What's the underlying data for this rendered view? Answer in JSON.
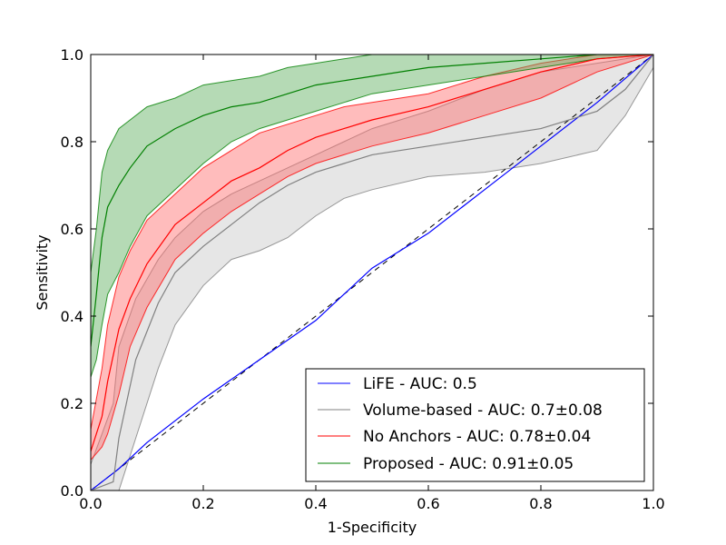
{
  "chart_data": {
    "type": "line",
    "title": "",
    "xlabel": "1-Specificity",
    "ylabel": "Sensitivity",
    "xlim": [
      0.0,
      1.0
    ],
    "ylim": [
      0.0,
      1.0
    ],
    "xticks": [
      "0.0",
      "0.2",
      "0.4",
      "0.6",
      "0.8",
      "1.0"
    ],
    "yticks": [
      "0.0",
      "0.2",
      "0.4",
      "0.6",
      "0.8",
      "1.0"
    ],
    "grid": false,
    "legend_position": "bottom-right",
    "chance_line": {
      "name": "chance",
      "style": "dashed",
      "color": "#000000",
      "x": [
        0,
        1
      ],
      "y": [
        0,
        1
      ]
    },
    "series": [
      {
        "name": "LiFE",
        "legend": "LiFE - AUC: 0.5",
        "color": "#0000ff",
        "x": [
          0.0,
          0.05,
          0.1,
          0.2,
          0.3,
          0.4,
          0.5,
          0.55,
          0.6,
          0.7,
          0.8,
          0.9,
          1.0
        ],
        "y": [
          0.0,
          0.05,
          0.11,
          0.21,
          0.3,
          0.39,
          0.51,
          0.55,
          0.59,
          0.69,
          0.79,
          0.89,
          1.0
        ]
      },
      {
        "name": "Volume-based",
        "legend": "Volume-based - AUC: 0.7±0.08",
        "color": "#808080",
        "fill": "#c8c8c8",
        "x": [
          0.0,
          0.04,
          0.05,
          0.08,
          0.12,
          0.15,
          0.2,
          0.25,
          0.3,
          0.35,
          0.4,
          0.45,
          0.5,
          0.6,
          0.7,
          0.8,
          0.9,
          0.95,
          1.0
        ],
        "y": [
          0.0,
          0.02,
          0.12,
          0.3,
          0.43,
          0.5,
          0.56,
          0.61,
          0.66,
          0.7,
          0.73,
          0.75,
          0.77,
          0.79,
          0.81,
          0.83,
          0.87,
          0.92,
          1.0
        ],
        "upper": [
          0.06,
          0.2,
          0.33,
          0.44,
          0.53,
          0.58,
          0.64,
          0.68,
          0.71,
          0.74,
          0.77,
          0.8,
          0.83,
          0.87,
          0.92,
          0.96,
          0.98,
          0.99,
          1.0
        ],
        "lower": [
          0.0,
          0.0,
          0.0,
          0.12,
          0.28,
          0.38,
          0.47,
          0.53,
          0.55,
          0.58,
          0.63,
          0.67,
          0.69,
          0.72,
          0.73,
          0.75,
          0.78,
          0.86,
          0.97
        ]
      },
      {
        "name": "No Anchors",
        "legend": "No Anchors - AUC: 0.78±0.04",
        "color": "#ff0000",
        "fill": "#ff6b6b",
        "x": [
          0.0,
          0.02,
          0.03,
          0.05,
          0.07,
          0.1,
          0.15,
          0.2,
          0.25,
          0.3,
          0.35,
          0.4,
          0.45,
          0.5,
          0.6,
          0.7,
          0.8,
          0.9,
          1.0
        ],
        "y": [
          0.09,
          0.17,
          0.25,
          0.37,
          0.44,
          0.52,
          0.61,
          0.66,
          0.71,
          0.74,
          0.78,
          0.81,
          0.83,
          0.85,
          0.88,
          0.92,
          0.96,
          0.99,
          1.0
        ],
        "upper": [
          0.14,
          0.28,
          0.38,
          0.49,
          0.55,
          0.62,
          0.68,
          0.74,
          0.78,
          0.82,
          0.84,
          0.86,
          0.88,
          0.89,
          0.91,
          0.95,
          0.98,
          1.0,
          1.0
        ],
        "lower": [
          0.07,
          0.1,
          0.13,
          0.22,
          0.33,
          0.42,
          0.53,
          0.59,
          0.64,
          0.68,
          0.72,
          0.75,
          0.77,
          0.79,
          0.82,
          0.86,
          0.9,
          0.96,
          1.0
        ]
      },
      {
        "name": "Proposed",
        "legend": "Proposed - AUC: 0.91±0.05",
        "color": "#007f00",
        "fill": "#5aae5a",
        "x": [
          0.0,
          0.01,
          0.02,
          0.03,
          0.05,
          0.07,
          0.1,
          0.15,
          0.2,
          0.25,
          0.3,
          0.35,
          0.4,
          0.45,
          0.5,
          0.6,
          0.7,
          0.8,
          0.9,
          1.0
        ],
        "y": [
          0.33,
          0.45,
          0.58,
          0.65,
          0.7,
          0.74,
          0.79,
          0.83,
          0.86,
          0.88,
          0.89,
          0.91,
          0.93,
          0.94,
          0.95,
          0.97,
          0.98,
          0.99,
          1.0,
          1.0
        ],
        "upper": [
          0.5,
          0.6,
          0.73,
          0.78,
          0.83,
          0.85,
          0.88,
          0.9,
          0.93,
          0.94,
          0.95,
          0.97,
          0.98,
          0.99,
          1.0,
          1.0,
          1.0,
          1.0,
          1.0,
          1.0
        ],
        "lower": [
          0.26,
          0.3,
          0.38,
          0.45,
          0.5,
          0.56,
          0.63,
          0.69,
          0.75,
          0.8,
          0.83,
          0.85,
          0.87,
          0.89,
          0.91,
          0.93,
          0.95,
          0.97,
          0.99,
          1.0
        ]
      }
    ]
  }
}
